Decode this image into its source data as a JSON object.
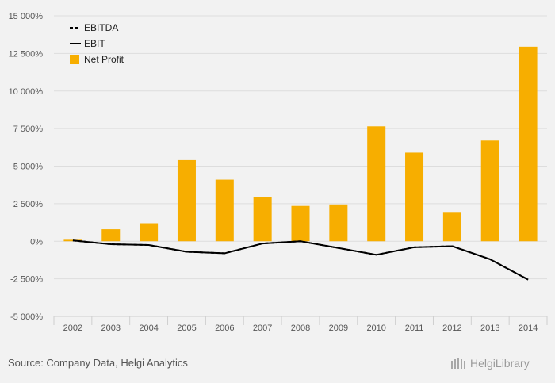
{
  "chart_data": {
    "type": "bar",
    "categories": [
      "2002",
      "2003",
      "2004",
      "2005",
      "2006",
      "2007",
      "2008",
      "2009",
      "2010",
      "2011",
      "2012",
      "2013",
      "2014"
    ],
    "series": [
      {
        "name": "EBITDA",
        "type": "line",
        "style": "dashed",
        "color": "#000000",
        "values": [
          50,
          -200,
          -250,
          -700,
          -800,
          -150,
          0,
          -450,
          -900,
          -400,
          -330,
          -1200,
          -2550
        ]
      },
      {
        "name": "EBIT",
        "type": "line",
        "style": "solid",
        "color": "#000000",
        "values": [
          50,
          -200,
          -250,
          -700,
          -800,
          -150,
          0,
          -450,
          -900,
          -400,
          -330,
          -1200,
          -2550
        ]
      },
      {
        "name": "Net Profit",
        "type": "bar",
        "color": "#f7ae00",
        "values": [
          100,
          800,
          1200,
          5400,
          4100,
          2950,
          2350,
          2450,
          7650,
          5900,
          1950,
          6700,
          12950
        ]
      }
    ],
    "y_ticks": [
      "15 000%",
      "12 500%",
      "10 000%",
      "7 500%",
      "5 000%",
      "2 500%",
      "0%",
      "-2 500%",
      "-5 000%"
    ],
    "ylim": [
      -5000,
      15000
    ],
    "grid": true,
    "legend_position": "top-left"
  },
  "footer": {
    "source": "Source: Company Data, Helgi Analytics",
    "brand": "HelgiLibrary"
  },
  "colors": {
    "background": "#f2f2f2",
    "grid": "#dddddd",
    "bar": "#f7ae00",
    "line": "#000000"
  }
}
